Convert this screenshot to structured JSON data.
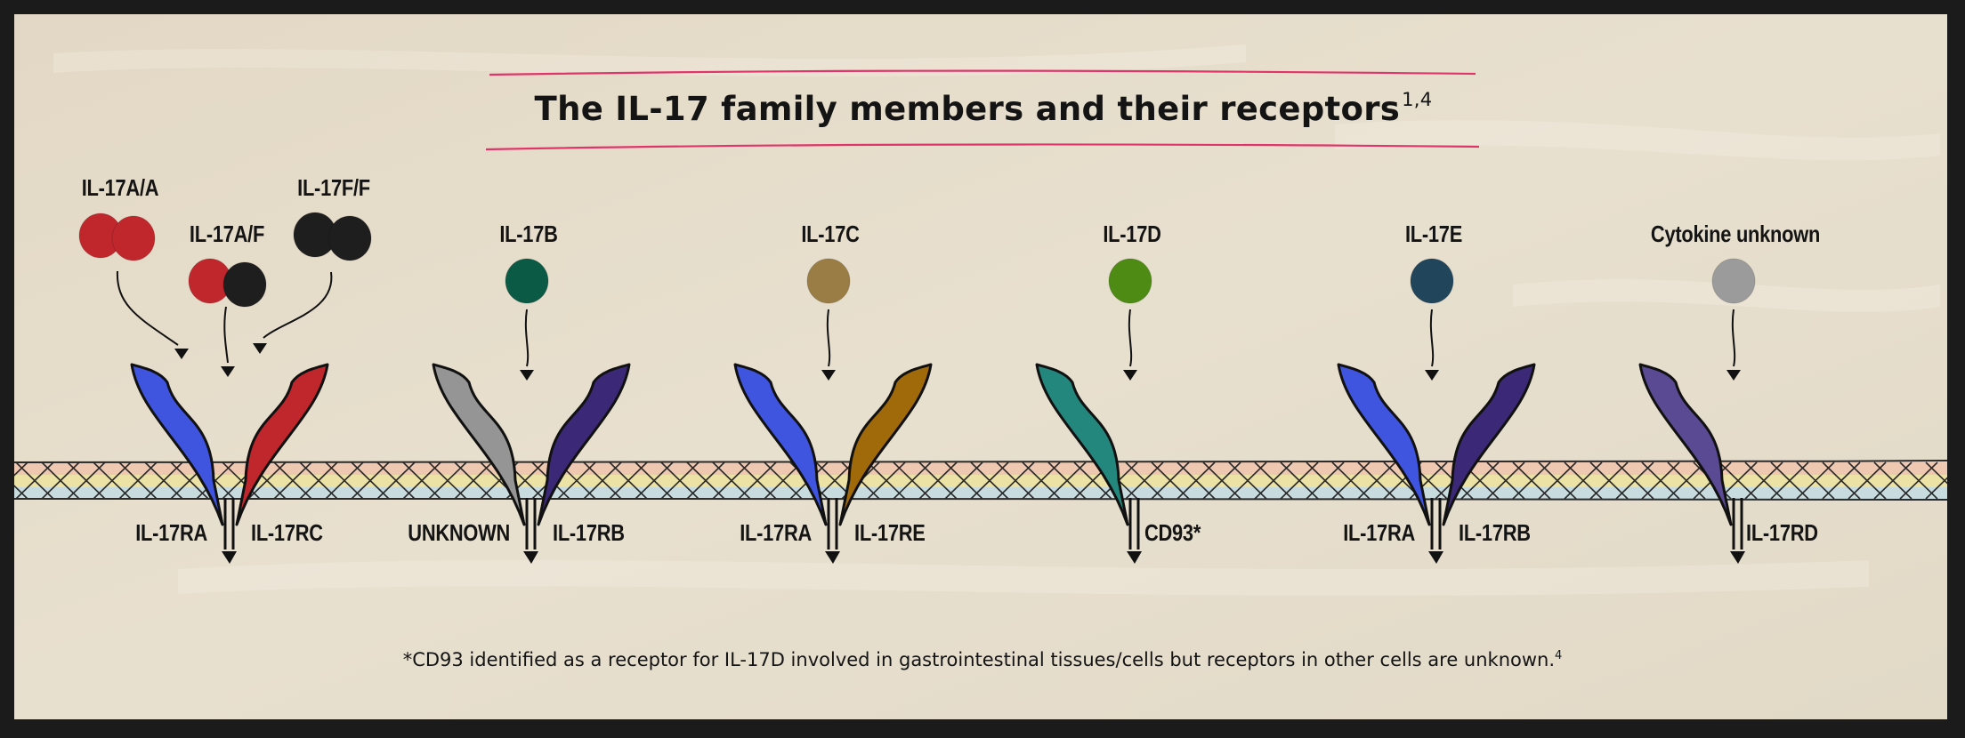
{
  "title": {
    "text": "The IL-17 family members and their receptors",
    "refs": "1,4"
  },
  "cytokines": [
    {
      "label": "IL-17A/A",
      "colors": [
        "#c0272d",
        "#c0272d"
      ]
    },
    {
      "label": "IL-17A/F",
      "colors": [
        "#c0272d",
        "#1e1e1e"
      ]
    },
    {
      "label": "IL-17F/F",
      "colors": [
        "#1e1e1e",
        "#1e1e1e"
      ]
    },
    {
      "label": "IL-17B",
      "colors": [
        "#0b5a45"
      ]
    },
    {
      "label": "IL-17C",
      "colors": [
        "#9a7d45"
      ]
    },
    {
      "label": "IL-17D",
      "colors": [
        "#4e8b14"
      ]
    },
    {
      "label": "IL-17E",
      "colors": [
        "#21455a"
      ]
    },
    {
      "label": "Cytokine unknown",
      "colors": [
        "#9b9b9b"
      ]
    }
  ],
  "receptor_pairs": [
    {
      "left": {
        "label": "IL-17RA",
        "color": "#3f55e0"
      },
      "right": {
        "label": "IL-17RC",
        "color": "#c0272d"
      }
    },
    {
      "left": {
        "label": "UNKNOWN",
        "color": "#959595"
      },
      "right": {
        "label": "IL-17RB",
        "color": "#3b2876"
      }
    },
    {
      "left": {
        "label": "IL-17RA",
        "color": "#3f55e0"
      },
      "right": {
        "label": "IL-17RE",
        "color": "#a06a0a"
      }
    },
    {
      "left": {
        "label": "",
        "color": "#24877d"
      },
      "right": {
        "label": "CD93*",
        "color": ""
      }
    },
    {
      "left": {
        "label": "IL-17RA",
        "color": "#3f55e0"
      },
      "right": {
        "label": "IL-17RB",
        "color": "#3b2876"
      }
    },
    {
      "left": {
        "label": "",
        "color": "#5a4a94"
      },
      "right": {
        "label": "IL-17RD",
        "color": ""
      }
    }
  ],
  "footnote": {
    "text": "*CD93 identified as a receptor for IL-17D involved in gastrointestinal tissues/cells but receptors in other cells are unknown.",
    "ref": "4"
  },
  "colors": {
    "background": "#e5dccb",
    "frame": "#1b1b1b",
    "title_rule": "#e0356a",
    "membrane_top": "#efc8b1",
    "membrane_mid": "#ece2a6",
    "membrane_bottom": "#c8dcdf"
  }
}
